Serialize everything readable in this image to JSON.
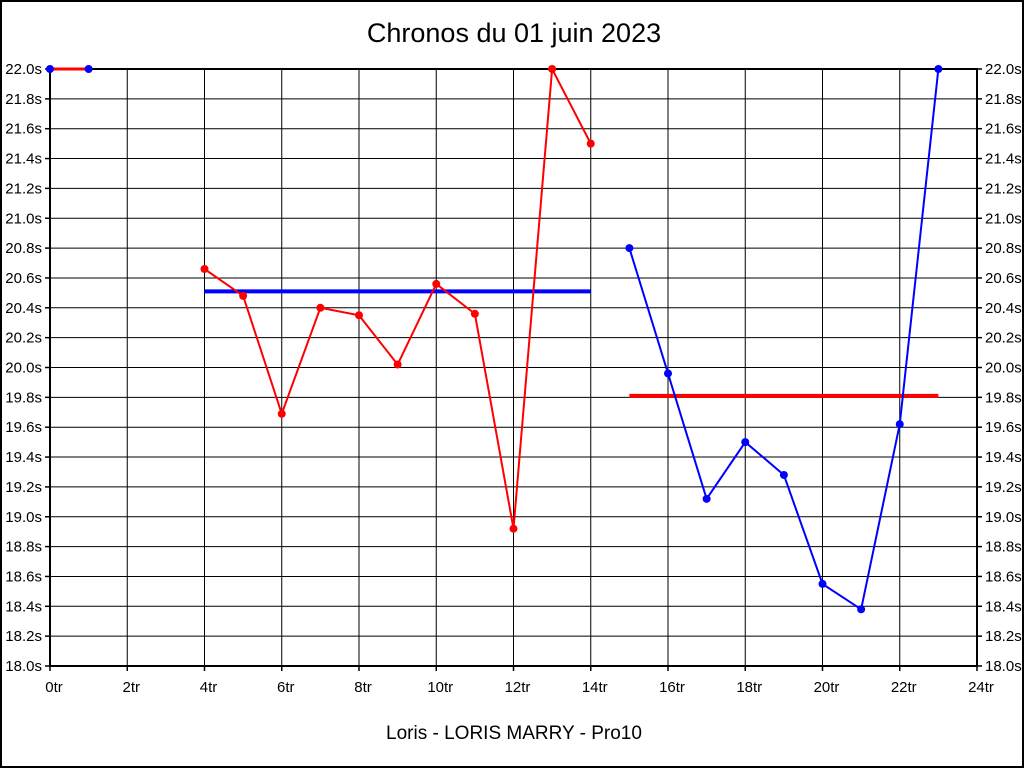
{
  "chart_data": {
    "type": "line",
    "title": "Chronos du 01 juin 2023",
    "caption": "Loris - LORIS MARRY - Pro10",
    "x_axis": {
      "min": 0,
      "max": 24,
      "tick_step": 2,
      "suffix": "tr"
    },
    "y_axis": {
      "min": 18.0,
      "max": 22.0,
      "tick_step": 0.2,
      "suffix": "s",
      "decimals": 1
    },
    "grid": true,
    "colors": {
      "red": "#ff0000",
      "blue": "#0000ff",
      "grid": "#000000",
      "text": "#000000"
    },
    "series": [
      {
        "name": "chrono-start-segment",
        "line_color": "#ff0000",
        "marker_color": "#0000ff",
        "line_width": 3,
        "points": [
          [
            0,
            22.0
          ],
          [
            1,
            22.0
          ]
        ]
      },
      {
        "name": "chrono-red-laps",
        "line_color": "#ff0000",
        "marker_color": "#ff0000",
        "line_width": 2,
        "points": [
          [
            4,
            20.66
          ],
          [
            5,
            20.48
          ],
          [
            6,
            19.69
          ],
          [
            7,
            20.4
          ],
          [
            8,
            20.35
          ],
          [
            9,
            20.02
          ],
          [
            10,
            20.56
          ],
          [
            11,
            20.36
          ],
          [
            12,
            18.92
          ],
          [
            13,
            22.0
          ],
          [
            14,
            21.5
          ]
        ]
      },
      {
        "name": "chrono-blue-laps",
        "line_color": "#0000ff",
        "marker_color": "#0000ff",
        "line_width": 2,
        "points": [
          [
            15,
            20.8
          ],
          [
            16,
            19.96
          ],
          [
            17,
            19.12
          ],
          [
            18,
            19.5
          ],
          [
            19,
            19.28
          ],
          [
            20,
            18.55
          ],
          [
            21,
            18.38
          ],
          [
            22,
            19.62
          ],
          [
            23,
            22.0
          ]
        ]
      }
    ],
    "reference_lines": [
      {
        "name": "blue-average-line",
        "color": "#0000ff",
        "y": 20.51,
        "x_start": 4,
        "x_end": 14,
        "width": 4
      },
      {
        "name": "red-average-line",
        "color": "#ff0000",
        "y": 19.81,
        "x_start": 15,
        "x_end": 23,
        "width": 4
      }
    ]
  }
}
